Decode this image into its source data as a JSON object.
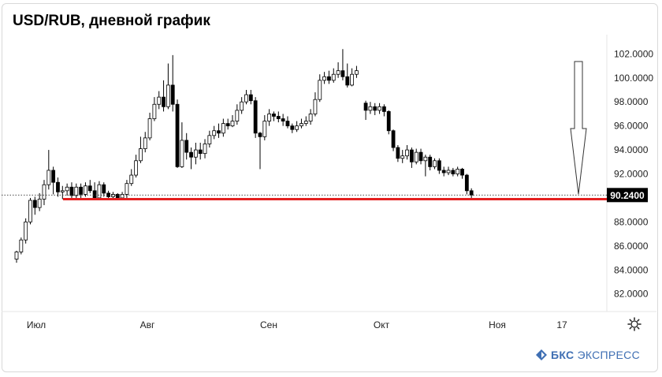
{
  "title": "USD/RUB, дневной график",
  "brand": {
    "name_bold": "БКС",
    "name_rest": "ЭКСПРЕСС"
  },
  "chart_data": {
    "type": "candlestick",
    "title": "USD/RUB, дневной график",
    "y_axis": {
      "ticks": [
        "102.0000",
        "100.0000",
        "98.0000",
        "96.0000",
        "94.0000",
        "92.0000",
        "88.0000",
        "86.0000",
        "84.0000",
        "82.0000"
      ],
      "ylim": [
        80.6,
        103.6
      ],
      "position": "right"
    },
    "x_axis": {
      "tick_labels": [
        "Июл",
        "Авг",
        "Сен",
        "Окт",
        "Ноя",
        "17"
      ]
    },
    "last_price": "90.2400",
    "support_level": 89.9,
    "annotation": "arrow pointing down to 90.24",
    "colors": {
      "up": "#ffffff",
      "down": "#000000",
      "support_line": "#e41f1f",
      "price_label_bg": "#000000"
    },
    "candles": [
      [
        84.9,
        85.5,
        84.6,
        85.6
      ],
      [
        85.5,
        86.5,
        85.3,
        86.7
      ],
      [
        86.5,
        88.0,
        86.2,
        88.3
      ],
      [
        88.0,
        89.8,
        87.8,
        90.0
      ],
      [
        89.8,
        89.2,
        88.6,
        90.1
      ],
      [
        89.2,
        89.9,
        88.9,
        90.4
      ],
      [
        89.9,
        91.1,
        89.4,
        91.5
      ],
      [
        91.1,
        92.3,
        90.7,
        94.0
      ],
      [
        92.3,
        91.3,
        90.3,
        92.6
      ],
      [
        91.3,
        90.5,
        90.1,
        91.7
      ],
      [
        90.5,
        90.6,
        89.9,
        91.0
      ],
      [
        90.6,
        90.9,
        90.2,
        91.2
      ],
      [
        90.9,
        90.2,
        89.9,
        91.3
      ],
      [
        90.2,
        90.9,
        89.8,
        91.2
      ],
      [
        90.9,
        90.3,
        90.0,
        91.2
      ],
      [
        90.3,
        91.0,
        90.1,
        91.3
      ],
      [
        91.0,
        90.6,
        90.4,
        91.5
      ],
      [
        90.6,
        90.0,
        89.8,
        91.3
      ],
      [
        90.0,
        91.1,
        89.9,
        91.4
      ],
      [
        91.1,
        90.4,
        90.1,
        91.3
      ],
      [
        90.4,
        90.1,
        89.9,
        90.6
      ],
      [
        90.1,
        90.3,
        89.9,
        90.5
      ],
      [
        90.3,
        90.0,
        89.8,
        90.4
      ],
      [
        90.0,
        90.3,
        89.8,
        90.5
      ],
      [
        90.3,
        91.2,
        90.0,
        91.5
      ],
      [
        91.2,
        91.9,
        91.0,
        92.4
      ],
      [
        91.9,
        93.1,
        91.7,
        93.6
      ],
      [
        93.1,
        94.1,
        92.9,
        95.1
      ],
      [
        94.1,
        95.0,
        93.8,
        95.5
      ],
      [
        95.0,
        96.6,
        94.8,
        97.1
      ],
      [
        96.6,
        97.8,
        96.4,
        98.4
      ],
      [
        97.8,
        98.4,
        97.4,
        98.9
      ],
      [
        98.4,
        97.6,
        97.2,
        99.8
      ],
      [
        97.6,
        99.4,
        97.4,
        101.2
      ],
      [
        99.4,
        97.8,
        97.2,
        101.9
      ],
      [
        97.8,
        92.6,
        92.5,
        98.2
      ],
      [
        92.6,
        94.8,
        92.5,
        96.3
      ],
      [
        94.8,
        93.8,
        93.2,
        95.4
      ],
      [
        93.8,
        93.4,
        92.4,
        94.2
      ],
      [
        93.4,
        94.0,
        92.8,
        94.6
      ],
      [
        94.0,
        93.7,
        93.2,
        94.6
      ],
      [
        93.7,
        94.5,
        93.3,
        94.9
      ],
      [
        94.5,
        95.2,
        94.2,
        95.6
      ],
      [
        95.2,
        95.6,
        94.9,
        96.0
      ],
      [
        95.6,
        95.4,
        95.0,
        96.2
      ],
      [
        95.4,
        96.2,
        95.1,
        96.6
      ],
      [
        96.2,
        96.0,
        95.7,
        96.6
      ],
      [
        96.0,
        96.4,
        95.9,
        96.9
      ],
      [
        96.4,
        97.3,
        96.1,
        97.8
      ],
      [
        97.3,
        98.0,
        97.0,
        98.4
      ],
      [
        98.0,
        98.6,
        97.8,
        99.0
      ],
      [
        98.6,
        98.1,
        97.8,
        99.0
      ],
      [
        98.1,
        95.4,
        95.0,
        98.4
      ],
      [
        95.4,
        95.1,
        92.4,
        95.5
      ],
      [
        95.1,
        96.4,
        94.8,
        96.9
      ],
      [
        96.4,
        97.0,
        96.0,
        97.4
      ],
      [
        97.0,
        96.8,
        96.4,
        97.2
      ],
      [
        96.8,
        96.6,
        96.3,
        97.2
      ],
      [
        96.6,
        96.4,
        96.0,
        97.0
      ],
      [
        96.4,
        96.0,
        95.8,
        96.8
      ],
      [
        96.0,
        95.7,
        95.4,
        96.2
      ],
      [
        95.7,
        96.0,
        95.5,
        96.4
      ],
      [
        96.0,
        96.2,
        95.8,
        96.6
      ],
      [
        96.2,
        96.4,
        96.0,
        96.8
      ],
      [
        96.4,
        97.0,
        96.1,
        97.4
      ],
      [
        97.0,
        98.2,
        96.8,
        98.8
      ],
      [
        98.2,
        99.8,
        98.0,
        100.3
      ],
      [
        99.8,
        100.1,
        99.5,
        100.5
      ],
      [
        100.1,
        99.8,
        99.5,
        100.6
      ],
      [
        99.8,
        100.3,
        99.6,
        100.8
      ],
      [
        100.3,
        100.6,
        100.0,
        101.3
      ],
      [
        100.6,
        100.1,
        99.8,
        102.4
      ],
      [
        100.1,
        99.4,
        99.2,
        101.2
      ],
      [
        99.4,
        100.3,
        99.3,
        100.8
      ],
      [
        100.3,
        100.6,
        100.0,
        101.0
      ],
      [
        97.9,
        97.3,
        96.5,
        98.1
      ],
      [
        97.3,
        97.6,
        97.0,
        98.0
      ],
      [
        97.6,
        97.3,
        96.9,
        97.9
      ],
      [
        97.3,
        97.6,
        97.0,
        97.9
      ],
      [
        97.6,
        97.2,
        96.8,
        97.8
      ],
      [
        97.2,
        95.6,
        95.3,
        97.3
      ],
      [
        95.6,
        94.2,
        93.9,
        95.7
      ],
      [
        94.2,
        93.3,
        93.0,
        94.4
      ],
      [
        93.3,
        93.5,
        92.9,
        94.0
      ],
      [
        93.5,
        94.0,
        93.2,
        94.4
      ],
      [
        94.0,
        93.0,
        92.5,
        94.2
      ],
      [
        93.0,
        93.8,
        92.8,
        94.1
      ],
      [
        93.8,
        93.1,
        92.8,
        94.1
      ],
      [
        93.1,
        93.4,
        91.8,
        93.6
      ],
      [
        93.4,
        92.6,
        92.3,
        93.6
      ],
      [
        92.6,
        93.1,
        92.4,
        93.3
      ],
      [
        93.1,
        92.3,
        92.0,
        93.3
      ],
      [
        92.3,
        92.1,
        91.8,
        92.6
      ],
      [
        92.1,
        92.3,
        91.9,
        92.6
      ],
      [
        92.3,
        92.0,
        91.8,
        92.5
      ],
      [
        92.0,
        92.4,
        91.8,
        92.6
      ],
      [
        92.4,
        91.9,
        91.6,
        92.5
      ],
      [
        91.9,
        90.6,
        90.3,
        92.0
      ],
      [
        90.6,
        90.24,
        90.0,
        90.8
      ]
    ]
  }
}
